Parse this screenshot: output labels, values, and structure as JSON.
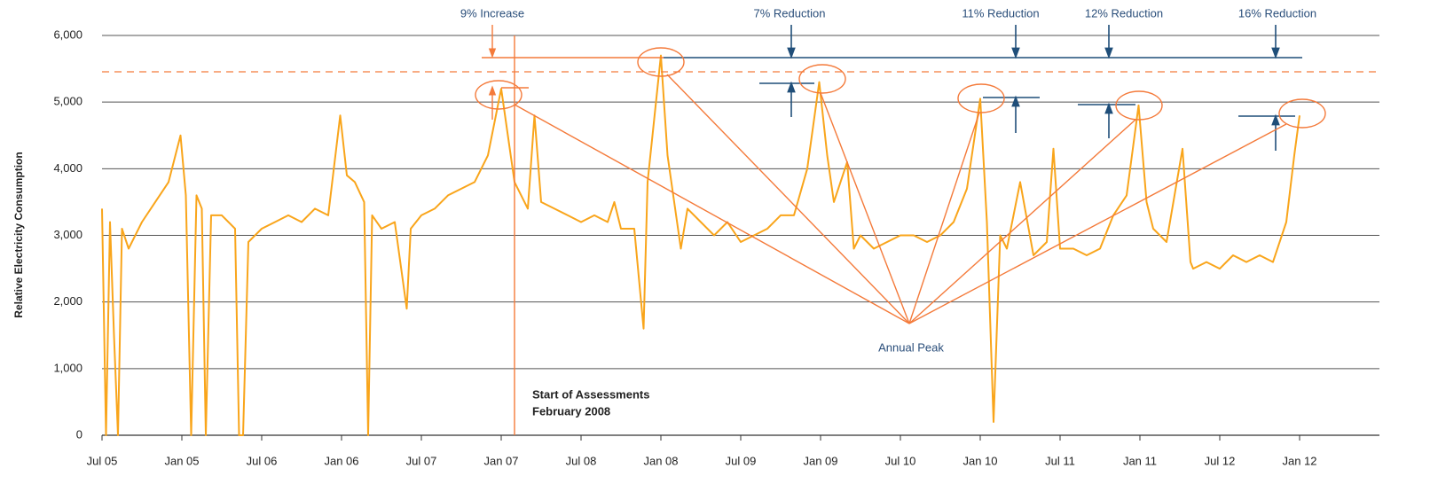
{
  "chart_data": {
    "type": "line",
    "y_label": "Relative Electricity Consumption",
    "color": "#f9a51b",
    "grid": true,
    "xlim": [
      0,
      96
    ],
    "xticks": [
      {
        "value": 0,
        "label": "Jul 05"
      },
      {
        "value": 6,
        "label": "Jan 05"
      },
      {
        "value": 12,
        "label": "Jul 06"
      },
      {
        "value": 18,
        "label": "Jan 06"
      },
      {
        "value": 24,
        "label": "Jul 07"
      },
      {
        "value": 30,
        "label": "Jan 07"
      },
      {
        "value": 36,
        "label": "Jul 08"
      },
      {
        "value": 42,
        "label": "Jan 08"
      },
      {
        "value": 48,
        "label": "Jul 09"
      },
      {
        "value": 54,
        "label": "Jan 09"
      },
      {
        "value": 60,
        "label": "Jul 10"
      },
      {
        "value": 66,
        "label": "Jan 10"
      },
      {
        "value": 72,
        "label": "Jul 11"
      },
      {
        "value": 78,
        "label": "Jan 11"
      },
      {
        "value": 84,
        "label": "Jul 12"
      },
      {
        "value": 90,
        "label": "Jan 12"
      }
    ],
    "ylim": [
      0,
      6000
    ],
    "yticks": [
      0,
      {
        "value": 1000,
        "label": "1,000"
      },
      {
        "value": 2000,
        "label": "2,000"
      },
      {
        "value": 3000,
        "label": "3,000"
      },
      {
        "value": 4000,
        "label": "4,000"
      },
      {
        "value": 5000,
        "label": "5,000"
      },
      {
        "value": 6000,
        "label": "6,000"
      }
    ],
    "x": [
      0,
      0.3,
      0.6,
      0.9,
      1.2,
      1.5,
      2,
      3,
      4,
      5,
      5.9,
      6.3,
      6.7,
      7.1,
      7.5,
      7.8,
      8.2,
      9,
      10,
      10.3,
      10.6,
      11,
      12,
      13,
      14,
      15,
      16,
      17,
      17.9,
      18.4,
      19,
      19.7,
      20,
      20.3,
      21,
      22,
      22.9,
      23.2,
      24,
      25,
      26,
      27,
      28,
      29,
      30,
      30.5,
      31,
      32,
      32.5,
      33,
      34,
      35,
      36,
      37,
      38,
      38.5,
      39,
      40,
      40.7,
      41,
      42,
      42.5,
      43,
      43.5,
      44,
      45,
      46,
      47,
      48,
      49,
      50,
      51,
      52,
      53,
      53.9,
      54.5,
      55,
      56,
      56.5,
      57,
      58,
      59,
      60,
      61,
      62,
      63,
      64,
      65,
      66,
      66.5,
      67,
      67.5,
      68,
      69,
      70,
      71,
      71.5,
      72,
      73,
      74,
      75,
      76,
      77,
      77.9,
      78.5,
      79,
      80,
      81.2,
      81.8,
      82,
      83,
      84,
      85,
      86,
      87,
      88,
      89,
      89.6,
      90
    ],
    "values": [
      3400,
      0,
      3200,
      1500,
      0,
      3100,
      2800,
      3200,
      3500,
      3800,
      4500,
      3600,
      0,
      3600,
      3400,
      0,
      3300,
      3300,
      3100,
      0,
      0,
      2900,
      3100,
      3200,
      3300,
      3200,
      3400,
      3300,
      4800,
      3900,
      3800,
      3500,
      0,
      3300,
      3100,
      3200,
      1900,
      3100,
      3300,
      3400,
      3600,
      3700,
      3800,
      4200,
      5200,
      4500,
      3800,
      3400,
      4800,
      3500,
      3400,
      3300,
      3200,
      3300,
      3200,
      3500,
      3100,
      3100,
      1600,
      3800,
      5700,
      4200,
      3500,
      2800,
      3400,
      3200,
      3000,
      3200,
      2900,
      3000,
      3100,
      3300,
      3300,
      4000,
      5300,
      4200,
      3500,
      4100,
      2800,
      3000,
      2800,
      2900,
      3000,
      3000,
      2900,
      3000,
      3200,
      3700,
      5050,
      3200,
      200,
      3000,
      2800,
      3800,
      2700,
      2900,
      4300,
      2800,
      2800,
      2700,
      2800,
      3300,
      3600,
      4950,
      3500,
      3100,
      2900,
      4300,
      2600,
      2500,
      2600,
      2500,
      2700,
      2600,
      2700,
      2600,
      3200,
      4200,
      4800
    ],
    "annotations": [
      "9% Increase",
      "7% Reduction",
      "11% Reduction",
      "12% Reduction",
      "16% Reduction",
      "Annual Peak",
      "Start of Assessments",
      "February 2008"
    ]
  }
}
